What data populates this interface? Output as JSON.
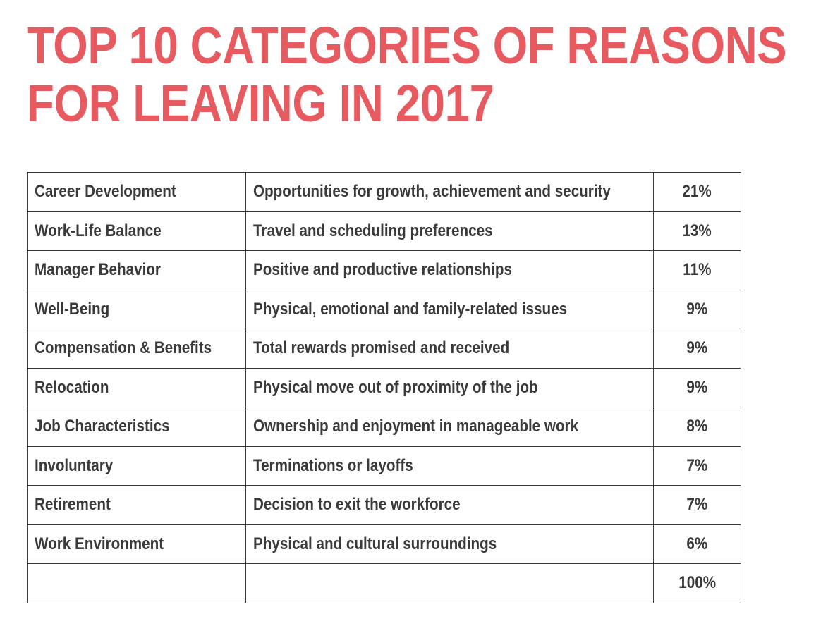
{
  "title": {
    "line1": "TOP 10 CATEGORIES OF REASONS",
    "line2": "FOR LEAVING IN 2017"
  },
  "colors": {
    "title": "#e75a5f",
    "text": "#3a3a3a",
    "border": "#3a3a3a"
  },
  "table": {
    "rows": [
      {
        "category": "Career Development",
        "description": "Opportunities for growth, achievement and security",
        "percent": "21%"
      },
      {
        "category": "Work-Life Balance",
        "description": "Travel and scheduling preferences",
        "percent": "13%"
      },
      {
        "category": "Manager Behavior",
        "description": "Positive and productive relationships",
        "percent": "11%"
      },
      {
        "category": "Well-Being",
        "description": "Physical, emotional and family-related issues",
        "percent": "9%"
      },
      {
        "category": "Compensation & Benefits",
        "description": "Total rewards promised and received",
        "percent": "9%"
      },
      {
        "category": "Relocation",
        "description": "Physical move out of proximity of the job",
        "percent": "9%"
      },
      {
        "category": "Job Characteristics",
        "description": "Ownership and enjoyment in manageable work",
        "percent": "8%"
      },
      {
        "category": "Involuntary",
        "description": "Terminations or layoffs",
        "percent": "7%"
      },
      {
        "category": "Retirement",
        "description": "Decision to exit the workforce",
        "percent": "7%"
      },
      {
        "category": "Work Environment",
        "description": "Physical and cultural surroundings",
        "percent": "6%"
      }
    ],
    "total": {
      "category": "",
      "description": "",
      "percent": "100%"
    }
  }
}
